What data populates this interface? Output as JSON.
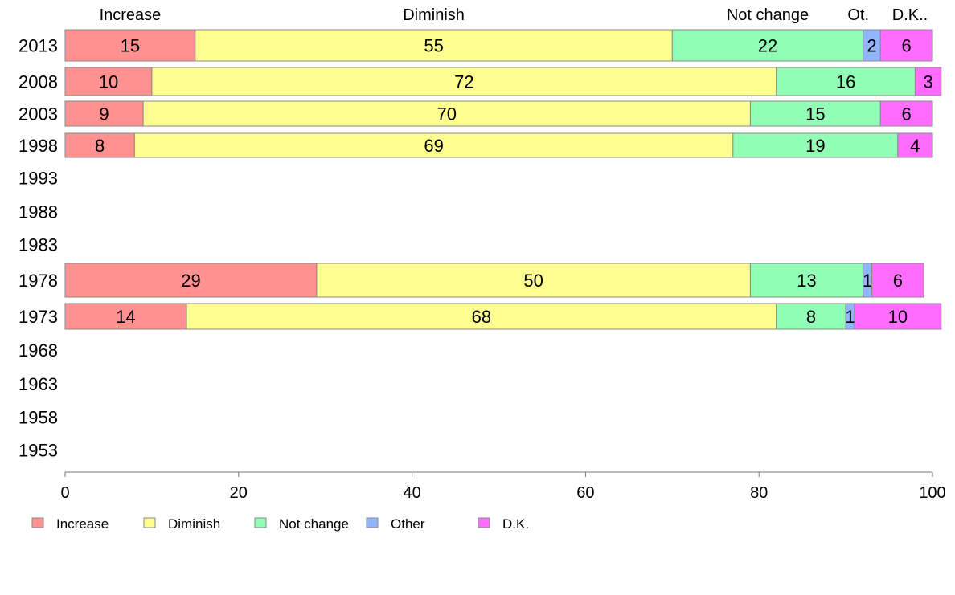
{
  "chart_data": {
    "type": "bar",
    "orientation": "horizontal",
    "stacked": true,
    "categories": [
      "2013",
      "2008",
      "2003",
      "1998",
      "1993",
      "1988",
      "1983",
      "1978",
      "1973",
      "1968",
      "1963",
      "1958",
      "1953"
    ],
    "series": [
      {
        "name": "Increase",
        "color": "#ff9191",
        "values": [
          15,
          10,
          9,
          8,
          null,
          null,
          null,
          29,
          14,
          null,
          null,
          null,
          null
        ]
      },
      {
        "name": "Diminish",
        "color": "#ffff91",
        "values": [
          55,
          72,
          70,
          69,
          null,
          null,
          null,
          50,
          68,
          null,
          null,
          null,
          null
        ]
      },
      {
        "name": "Not change",
        "color": "#91ffb6",
        "values": [
          22,
          16,
          15,
          19,
          null,
          null,
          null,
          13,
          8,
          null,
          null,
          null,
          null
        ]
      },
      {
        "name": "Other",
        "color": "#91b6ff",
        "values": [
          2,
          0,
          0,
          0,
          null,
          null,
          null,
          1,
          1,
          null,
          null,
          null,
          null
        ]
      },
      {
        "name": "D.K.",
        "color": "#ff6dff",
        "values": [
          6,
          3,
          6,
          4,
          null,
          null,
          null,
          6,
          10,
          null,
          null,
          null,
          null
        ]
      }
    ],
    "top_labels": [
      "Increase",
      "Diminish",
      "Not change",
      "Ot.",
      "D.K.."
    ],
    "x_ticks": [
      0,
      20,
      40,
      60,
      80,
      100
    ],
    "xlim": [
      0,
      100
    ],
    "grid": false,
    "legend_position": "bottom-left"
  }
}
